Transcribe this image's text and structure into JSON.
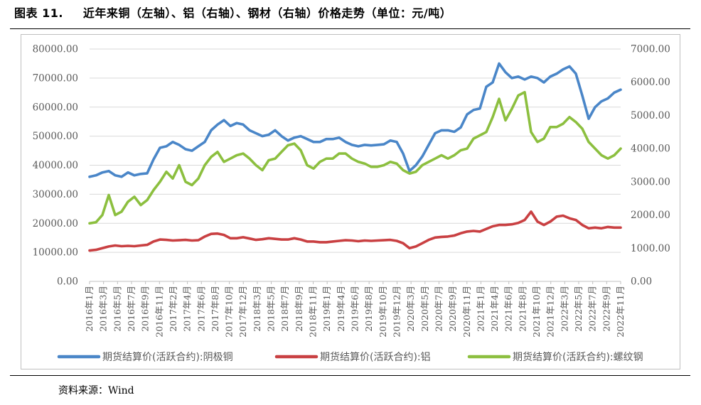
{
  "figure": {
    "title_number": "图表 11.",
    "title_text": "近年来铜（左轴）、铝（右轴）、钢材（右轴）价格走势（单位：元/吨）",
    "source": "资料来源：Wind"
  },
  "chart_data": {
    "type": "line",
    "title": "近年来铜（左轴）、铝（右轴）、钢材（右轴）价格走势（单位：元/吨）",
    "xlabel": "",
    "ylabel": "",
    "ylim": [
      0,
      80000
    ],
    "y2lim": [
      0,
      7000
    ],
    "yticks": [
      "0.00",
      "10000.00",
      "20000.00",
      "30000.00",
      "40000.00",
      "50000.00",
      "60000.00",
      "70000.00",
      "80000.00"
    ],
    "y2ticks": [
      "0.00",
      "1000.00",
      "2000.00",
      "3000.00",
      "4000.00",
      "5000.00",
      "6000.00",
      "7000.00"
    ],
    "x_tick_labels": [
      "2016年1月",
      "2016年3月",
      "2016年5月",
      "2016年7月",
      "2016年9月",
      "2016年11月",
      "2017年2月",
      "2017年4月",
      "2017年6月",
      "2017年8月",
      "2017年10月",
      "2017年12月",
      "2018年3月",
      "2018年5月",
      "2018年7月",
      "2018年9月",
      "2018年11月",
      "2019年1月",
      "2019年4月",
      "2019年6月",
      "2019年8月",
      "2019年10月",
      "2019年12月",
      "2020年3月",
      "2020年5月",
      "2020年7月",
      "2020年9月",
      "2020年11月",
      "2021年1月",
      "2021年4月",
      "2021年6月",
      "2021年8月",
      "2021年10月",
      "2021年12月",
      "2022年3月",
      "2022年5月",
      "2022年7月",
      "2022年9月",
      "2022年11月"
    ],
    "x": [
      "2016-01",
      "2016-02",
      "2016-03",
      "2016-04",
      "2016-05",
      "2016-06",
      "2016-07",
      "2016-08",
      "2016-09",
      "2016-10",
      "2016-11",
      "2016-12",
      "2017-01",
      "2017-02",
      "2017-03",
      "2017-04",
      "2017-05",
      "2017-06",
      "2017-07",
      "2017-08",
      "2017-09",
      "2017-10",
      "2017-11",
      "2017-12",
      "2018-01",
      "2018-02",
      "2018-03",
      "2018-04",
      "2018-05",
      "2018-06",
      "2018-07",
      "2018-08",
      "2018-09",
      "2018-10",
      "2018-11",
      "2018-12",
      "2019-01",
      "2019-02",
      "2019-03",
      "2019-04",
      "2019-05",
      "2019-06",
      "2019-07",
      "2019-08",
      "2019-09",
      "2019-10",
      "2019-11",
      "2019-12",
      "2020-01",
      "2020-02",
      "2020-03",
      "2020-04",
      "2020-05",
      "2020-06",
      "2020-07",
      "2020-08",
      "2020-09",
      "2020-10",
      "2020-11",
      "2020-12",
      "2021-01",
      "2021-02",
      "2021-03",
      "2021-04",
      "2021-05",
      "2021-06",
      "2021-07",
      "2021-08",
      "2021-09",
      "2021-10",
      "2021-11",
      "2021-12",
      "2022-01",
      "2022-02",
      "2022-03",
      "2022-04",
      "2022-05",
      "2022-06",
      "2022-07",
      "2022-08",
      "2022-09",
      "2022-10",
      "2022-11",
      "2022-12"
    ],
    "series": [
      {
        "name": "期货结算价(活跃合约):阴极铜",
        "axis": "left",
        "color": "#4a86c8",
        "values": [
          36000,
          36500,
          37500,
          38000,
          36500,
          36000,
          37500,
          36500,
          37000,
          37200,
          42000,
          46000,
          46500,
          48000,
          47000,
          45500,
          45000,
          46500,
          48000,
          52000,
          54000,
          55500,
          53500,
          54500,
          54000,
          52000,
          51000,
          50000,
          50500,
          52000,
          50000,
          48500,
          49500,
          50000,
          49000,
          48000,
          48000,
          49000,
          49000,
          49500,
          48000,
          47000,
          46500,
          47000,
          46800,
          47000,
          47200,
          48500,
          48000,
          44000,
          38000,
          40000,
          43000,
          47000,
          51000,
          52000,
          52000,
          51500,
          53000,
          57500,
          59000,
          59500,
          67000,
          68500,
          75000,
          72000,
          70000,
          70500,
          69500,
          70500,
          70000,
          68500,
          70500,
          71500,
          73000,
          74000,
          71500,
          64000,
          56000,
          60000,
          62000,
          63000,
          65000,
          66000
        ]
      },
      {
        "name": "期货结算价(活跃合约):铝",
        "axis": "right",
        "color": "#c94042",
        "values": [
          930,
          950,
          1000,
          1050,
          1080,
          1060,
          1070,
          1060,
          1080,
          1100,
          1200,
          1260,
          1250,
          1230,
          1240,
          1250,
          1230,
          1240,
          1350,
          1430,
          1440,
          1400,
          1300,
          1300,
          1330,
          1290,
          1250,
          1270,
          1300,
          1280,
          1260,
          1260,
          1300,
          1260,
          1200,
          1200,
          1180,
          1180,
          1200,
          1220,
          1240,
          1230,
          1210,
          1230,
          1220,
          1230,
          1240,
          1250,
          1220,
          1150,
          1000,
          1050,
          1150,
          1250,
          1320,
          1340,
          1350,
          1380,
          1450,
          1500,
          1520,
          1500,
          1580,
          1660,
          1700,
          1700,
          1720,
          1760,
          1850,
          2100,
          1800,
          1700,
          1800,
          1950,
          1980,
          1900,
          1850,
          1700,
          1600,
          1620,
          1600,
          1640,
          1620,
          1620
        ]
      },
      {
        "name": "期货结算价(活跃合约):螺纹钢",
        "axis": "right",
        "color": "#8cbf3f",
        "values": [
          1750,
          1780,
          2000,
          2600,
          2000,
          2100,
          2400,
          2550,
          2300,
          2450,
          2750,
          3000,
          3300,
          3100,
          3500,
          3000,
          2900,
          3100,
          3500,
          3750,
          3900,
          3600,
          3700,
          3800,
          3850,
          3700,
          3500,
          3350,
          3650,
          3700,
          3900,
          4100,
          4150,
          3950,
          3500,
          3400,
          3600,
          3700,
          3700,
          3850,
          3850,
          3700,
          3600,
          3550,
          3450,
          3450,
          3500,
          3600,
          3550,
          3350,
          3250,
          3300,
          3500,
          3600,
          3700,
          3800,
          3700,
          3800,
          3950,
          4000,
          4300,
          4400,
          4500,
          4950,
          5500,
          4850,
          5200,
          5600,
          5700,
          4500,
          4200,
          4300,
          4650,
          4650,
          4750,
          4950,
          4800,
          4600,
          4200,
          4000,
          3800,
          3700,
          3800,
          4000
        ]
      }
    ],
    "legend": "bottom",
    "grid": true
  }
}
